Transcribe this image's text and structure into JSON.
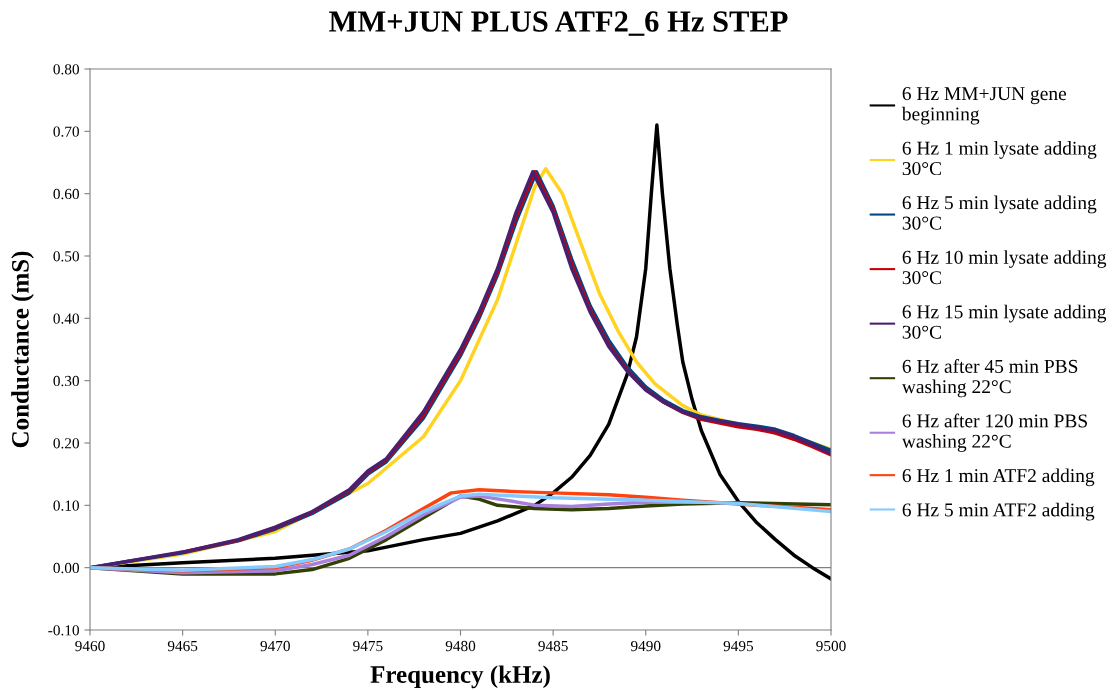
{
  "chart_data": {
    "type": "line",
    "title": "MM+JUN PLUS ATF2_6 Hz STEP",
    "xlabel": "Frequency (kHz)",
    "ylabel": "Conductance (mS)",
    "xlim": [
      9460,
      9500
    ],
    "xticks": [
      9460,
      9465,
      9470,
      9475,
      9480,
      9485,
      9490,
      9495,
      9500
    ],
    "ylim": [
      -0.1,
      0.8
    ],
    "yticks": [
      {
        "value": -0.1,
        "label": "-0.10"
      },
      {
        "value": 0,
        "label": "0.00"
      },
      {
        "value": 0.1,
        "label": "0.10"
      },
      {
        "value": 0.2,
        "label": "0.20"
      },
      {
        "value": 0.3,
        "label": "0.30"
      },
      {
        "value": 0.4,
        "label": "0.40"
      },
      {
        "value": 0.5,
        "label": "0.50"
      },
      {
        "value": 0.6,
        "label": "0.60"
      },
      {
        "value": 0.7,
        "label": "0.70"
      },
      {
        "value": 0.8,
        "label": "0.80"
      }
    ],
    "grid": false,
    "ref_lines": [
      {
        "axis": "y",
        "value": 0,
        "color": "#808080"
      }
    ],
    "legend": "right",
    "marker": "none",
    "line_style": "solid",
    "series": [
      {
        "name": "6 Hz MM+JUN gene\nbeginning",
        "color": "#000000",
        "x": [
          9460,
          9465,
          9470,
          9475,
          9478,
          9480,
          9482,
          9484,
          9485,
          9486,
          9487,
          9488,
          9489,
          9489.5,
          9490,
          9490.3,
          9490.6,
          9490.9,
          9491.3,
          9491.7,
          9492,
          9492.5,
          9493,
          9494,
          9495,
          9496,
          9497,
          9498,
          9499,
          9500
        ],
        "values": [
          0,
          0.008,
          0.015,
          0.027,
          0.045,
          0.055,
          0.075,
          0.1,
          0.12,
          0.145,
          0.18,
          0.23,
          0.31,
          0.37,
          0.48,
          0.6,
          0.71,
          0.6,
          0.48,
          0.39,
          0.33,
          0.27,
          0.22,
          0.15,
          0.106,
          0.072,
          0.045,
          0.02,
          0.0,
          -0.018
        ]
      },
      {
        "name": "6 Hz 1 min lysate adding\n30°C",
        "color": "#ffd320",
        "x": [
          9460,
          9465,
          9470,
          9475,
          9478,
          9480,
          9482,
          9483,
          9484,
          9484.6,
          9485.5,
          9486.5,
          9487.5,
          9488.5,
          9489.5,
          9490.5,
          9492,
          9493,
          9495,
          9497,
          9499,
          9500
        ],
        "values": [
          0,
          0.022,
          0.058,
          0.135,
          0.21,
          0.3,
          0.43,
          0.52,
          0.61,
          0.64,
          0.6,
          0.52,
          0.44,
          0.38,
          0.33,
          0.295,
          0.26,
          0.245,
          0.23,
          0.22,
          0.2,
          0.19
        ]
      },
      {
        "name": "6 Hz 5 min lysate adding\n30°C",
        "color": "#004586",
        "x": [
          9460,
          9462,
          9465,
          9468,
          9470,
          9472,
          9474,
          9475,
          9476,
          9478,
          9480,
          9481,
          9482,
          9483,
          9484.1,
          9485,
          9486,
          9487,
          9488,
          9489,
          9490,
          9491,
          9492,
          9493,
          9494,
          9495,
          9496,
          9497,
          9498,
          9499,
          9500
        ],
        "values": [
          0,
          0.01,
          0.024,
          0.043,
          0.062,
          0.087,
          0.12,
          0.15,
          0.17,
          0.24,
          0.34,
          0.4,
          0.47,
          0.555,
          0.635,
          0.58,
          0.495,
          0.42,
          0.365,
          0.322,
          0.29,
          0.268,
          0.252,
          0.242,
          0.236,
          0.231,
          0.227,
          0.222,
          0.212,
          0.2,
          0.188
        ]
      },
      {
        "name": "6 Hz 10 min lysate adding\n30°C",
        "color": "#c5000b",
        "x": [
          9465,
          9468,
          9470,
          9472,
          9474,
          9475,
          9476,
          9478,
          9480,
          9481,
          9482,
          9483,
          9484,
          9485,
          9486,
          9487,
          9488,
          9489,
          9490,
          9491,
          9492,
          9493,
          9494,
          9495,
          9496,
          9497,
          9498,
          9499,
          9500
        ],
        "values": [
          0.025,
          0.044,
          0.064,
          0.089,
          0.123,
          0.153,
          0.173,
          0.245,
          0.345,
          0.405,
          0.475,
          0.563,
          0.635,
          0.575,
          0.487,
          0.414,
          0.358,
          0.317,
          0.286,
          0.265,
          0.249,
          0.238,
          0.232,
          0.226,
          0.222,
          0.216,
          0.206,
          0.194,
          0.181
        ]
      },
      {
        "name": "6 Hz 15 min lysate adding\n30°C",
        "color": "#4b1f6f",
        "x": [
          9460,
          9462,
          9465,
          9468,
          9470,
          9472,
          9474,
          9475,
          9476,
          9478,
          9480,
          9481,
          9482,
          9483,
          9483.9,
          9485,
          9486,
          9487,
          9488,
          9489,
          9490,
          9491,
          9492,
          9493,
          9494,
          9495,
          9496,
          9497,
          9498,
          9499,
          9500
        ],
        "values": [
          0,
          0.01,
          0.025,
          0.045,
          0.065,
          0.09,
          0.125,
          0.155,
          0.175,
          0.25,
          0.35,
          0.41,
          0.48,
          0.57,
          0.635,
          0.57,
          0.48,
          0.41,
          0.355,
          0.315,
          0.285,
          0.265,
          0.25,
          0.24,
          0.235,
          0.23,
          0.225,
          0.22,
          0.21,
          0.197,
          0.183
        ]
      },
      {
        "name": "6 Hz after 45 min PBS\nwashing 22°C",
        "color": "#314004",
        "x": [
          9460,
          9465,
          9470,
          9472,
          9474,
          9476,
          9478,
          9480,
          9481,
          9482,
          9484,
          9486,
          9488,
          9490,
          9492,
          9495,
          9500
        ],
        "values": [
          0,
          -0.01,
          -0.01,
          -0.003,
          0.015,
          0.045,
          0.08,
          0.115,
          0.11,
          0.1,
          0.095,
          0.093,
          0.095,
          0.099,
          0.102,
          0.104,
          0.101
        ]
      },
      {
        "name": "6 Hz after 120 min PBS\nwashing 22°C",
        "color": "#aa80dd",
        "x": [
          9460,
          9465,
          9470,
          9472,
          9474,
          9476,
          9478,
          9480,
          9481,
          9482.5,
          9484,
          9486,
          9488,
          9490,
          9493
        ],
        "values": [
          0,
          -0.008,
          -0.005,
          0.005,
          0.02,
          0.05,
          0.085,
          0.113,
          0.115,
          0.108,
          0.1,
          0.098,
          0.102,
          0.105,
          0.105
        ]
      },
      {
        "name": "6 Hz 1 min ATF2 adding",
        "color": "#ff420e",
        "x": [
          9460,
          9465,
          9470,
          9472,
          9474,
          9476,
          9478,
          9479.5,
          9481,
          9483,
          9485,
          9488,
          9490,
          9492,
          9494,
          9496,
          9498,
          9500
        ],
        "values": [
          0,
          -0.005,
          0.0,
          0.012,
          0.03,
          0.06,
          0.095,
          0.12,
          0.125,
          0.122,
          0.12,
          0.117,
          0.113,
          0.108,
          0.104,
          0.1,
          0.097,
          0.093
        ]
      },
      {
        "name": "6 Hz 5 min ATF2 adding",
        "color": "#83caff",
        "x": [
          9460,
          9465,
          9470,
          9472,
          9474,
          9476,
          9478,
          9480,
          9481,
          9483,
          9485,
          9490,
          9495,
          9500
        ],
        "values": [
          0,
          -0.004,
          0.002,
          0.013,
          0.03,
          0.058,
          0.09,
          0.115,
          0.118,
          0.115,
          0.112,
          0.108,
          0.103,
          0.09
        ]
      }
    ]
  }
}
